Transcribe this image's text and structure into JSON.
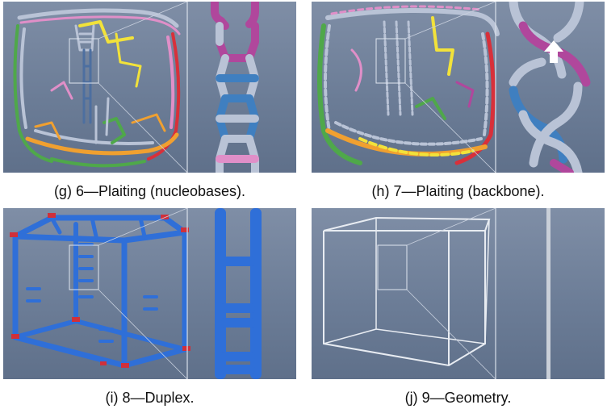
{
  "figure": {
    "panels": [
      {
        "id": "g",
        "caption": "(g) 6—Plaiting (nucleobases)."
      },
      {
        "id": "h",
        "caption": "(h) 7—Plaiting (backbone)."
      },
      {
        "id": "i",
        "caption": "(i) 8—Duplex."
      },
      {
        "id": "j",
        "caption": "(j) 9—Geometry."
      }
    ]
  },
  "colors": {
    "background_top": "#7f8ea6",
    "strand_blue": "#3f7fc0",
    "strand_silver": "#b9c3d6",
    "strand_magenta": "#b0479c",
    "strand_pink": "#e08fc8",
    "strand_yellow": "#f2e23a",
    "strand_green": "#4fa84a",
    "strand_orange": "#f0a030",
    "strand_red": "#d8303a",
    "duplex_blue": "#2f6fd8",
    "duplex_cap_red": "#d0303a",
    "geometry_white": "#e8ecf2"
  }
}
